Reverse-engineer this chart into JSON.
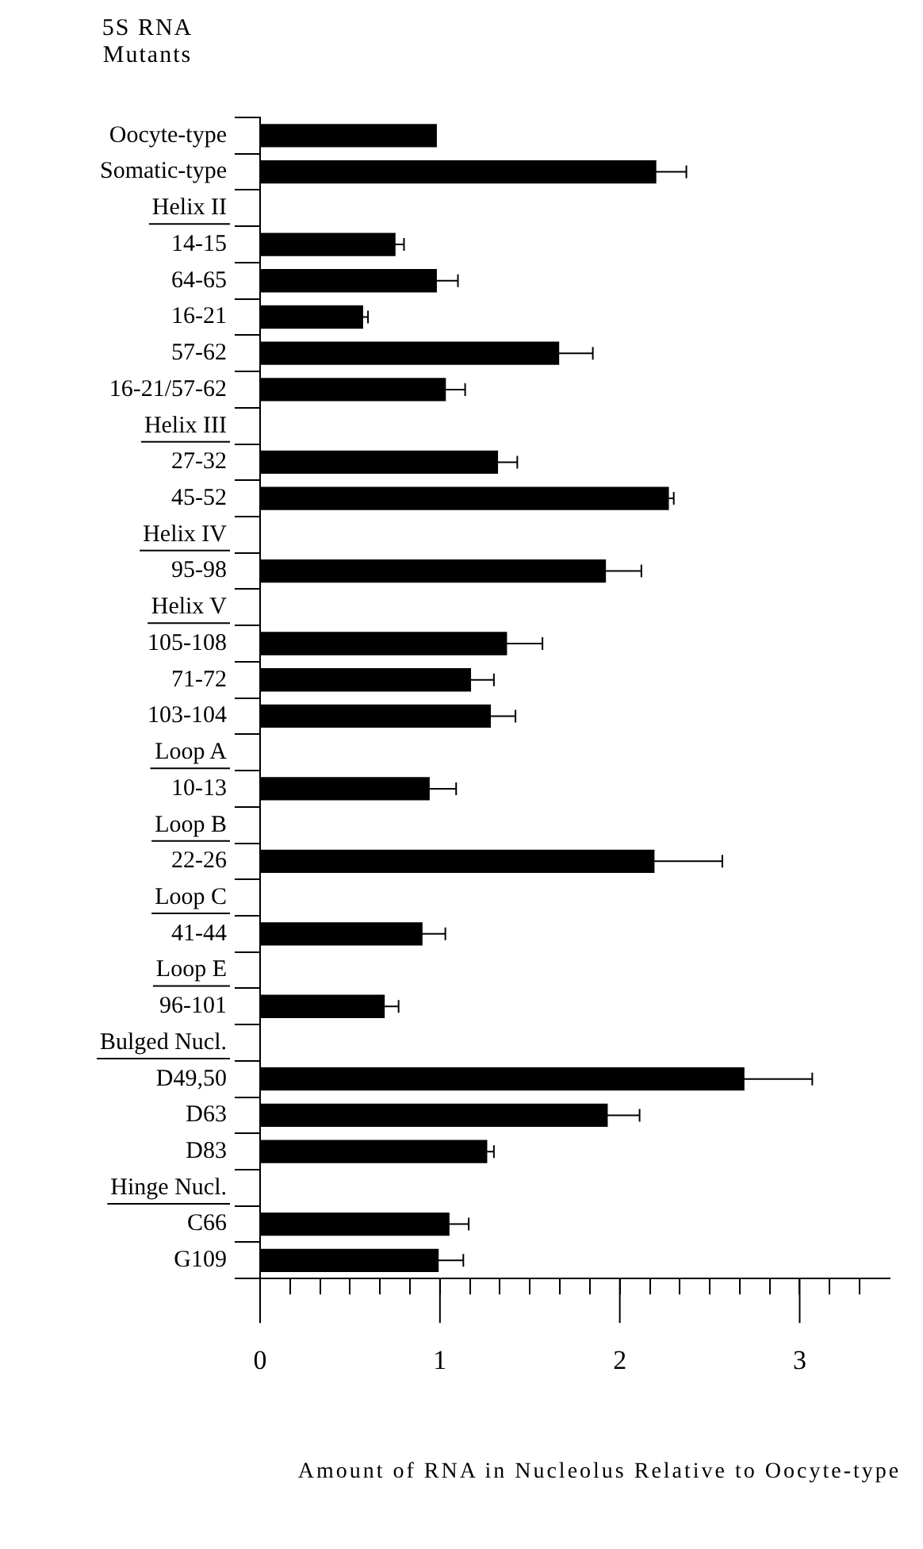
{
  "chart_data": {
    "type": "bar",
    "orientation": "horizontal",
    "ylabel": "5S RNA Mutants",
    "xlabel": "Amount of RNA in Nucleolus Relative to Oocyte-type",
    "categories": [
      "Oocyte-type",
      "Somatic-type",
      "Helix II",
      "14-15",
      "64-65",
      "16-21",
      "57-62",
      "16-21/57-62",
      "Helix III",
      "27-32",
      "45-52",
      "Helix IV",
      "95-98",
      "Helix V",
      "105-108",
      "71-72",
      "103-104",
      "Loop A",
      "10-13",
      "Loop B",
      "22-26",
      "Loop C",
      "41-44",
      "Loop E",
      "96-101",
      "Bulged Nucl.",
      "D49,50",
      "D63",
      "D83",
      "Hinge Nucl.",
      "C66",
      "G109"
    ],
    "values": [
      0.98,
      2.2,
      null,
      0.75,
      0.98,
      0.57,
      1.66,
      1.03,
      null,
      1.32,
      2.27,
      null,
      1.92,
      null,
      1.37,
      1.17,
      1.28,
      null,
      0.94,
      null,
      2.19,
      null,
      0.9,
      null,
      0.69,
      null,
      2.69,
      1.93,
      1.26,
      null,
      1.05,
      0.99
    ],
    "errors": [
      null,
      0.17,
      null,
      0.05,
      0.12,
      0.03,
      0.19,
      0.11,
      null,
      0.11,
      0.03,
      null,
      0.2,
      null,
      0.2,
      0.13,
      0.14,
      null,
      0.15,
      null,
      0.38,
      null,
      0.13,
      null,
      0.08,
      null,
      0.38,
      0.18,
      0.04,
      null,
      0.11,
      0.14
    ],
    "color": "#000000",
    "xlim": [
      0,
      3.5
    ],
    "xticks": [
      0,
      {
        "value": 0.167,
        "label": null
      },
      {
        "value": 0.333,
        "label": null
      },
      {
        "value": 0.5,
        "label": null
      },
      {
        "value": 0.667,
        "label": null
      },
      {
        "value": 0.833,
        "label": null
      },
      1,
      {
        "value": 1.167,
        "label": null
      },
      {
        "value": 1.333,
        "label": null
      },
      {
        "value": 1.5,
        "label": null
      },
      {
        "value": 1.667,
        "label": null
      },
      {
        "value": 1.833,
        "label": null
      },
      2,
      {
        "value": 2.167,
        "label": null
      },
      {
        "value": 2.333,
        "label": null
      },
      {
        "value": 2.5,
        "label": null
      },
      {
        "value": 2.667,
        "label": null
      },
      {
        "value": 2.833,
        "label": null
      },
      3,
      {
        "value": 3.167,
        "label": null
      },
      {
        "value": 3.333,
        "label": null
      }
    ],
    "grid": false,
    "legend": false
  }
}
